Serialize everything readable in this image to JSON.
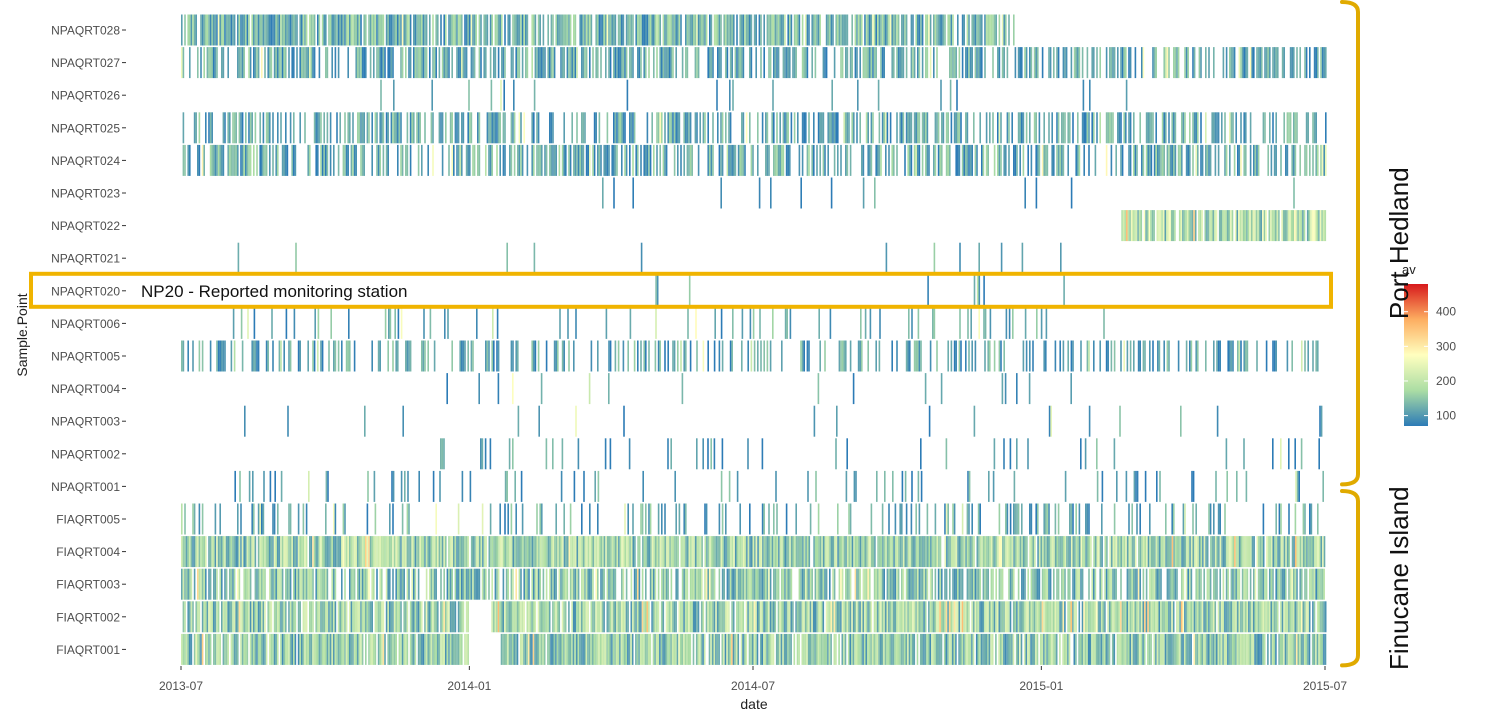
{
  "chart_data": {
    "type": "heatmap",
    "xlabel": "date",
    "ylabel": "Sample.Point",
    "x_ticks": [
      "2013-07",
      "2014-01",
      "2014-07",
      "2015-01",
      "2015-07"
    ],
    "xlim": [
      "2013-07-01",
      "2015-07-01"
    ],
    "rows": [
      "NPAQRT028",
      "NPAQRT027",
      "NPAQRT026",
      "NPAQRT025",
      "NPAQRT024",
      "NPAQRT023",
      "NPAQRT022",
      "NPAQRT021",
      "NPAQRT020",
      "NPAQRT006",
      "NPAQRT005",
      "NPAQRT004",
      "NPAQRT003",
      "NPAQRT002",
      "NPAQRT001",
      "FIAQRT005",
      "FIAQRT004",
      "FIAQRT003",
      "FIAQRT002",
      "FIAQRT001"
    ],
    "legend": {
      "title": "av",
      "ticks": [
        100,
        200,
        300,
        400
      ],
      "range": [
        70,
        480
      ],
      "palette": [
        "#2c7bb6",
        "#abdda4",
        "#ffffbf",
        "#fdae61",
        "#d7191c"
      ]
    },
    "coverage": [
      {
        "row": "NPAQRT028",
        "spans": [
          [
            "2013-07-01",
            "2014-12-14"
          ]
        ],
        "density": 0.82,
        "mean_av": 130
      },
      {
        "row": "NPAQRT027",
        "spans": [
          [
            "2013-07-01",
            "2015-07-01"
          ]
        ],
        "density": 0.62,
        "mean_av": 115
      },
      {
        "row": "NPAQRT026",
        "spans": [
          [
            "2013-11-01",
            "2015-03-01"
          ]
        ],
        "density": 0.05,
        "mean_av": 105
      },
      {
        "row": "NPAQRT025",
        "spans": [
          [
            "2013-07-01",
            "2015-07-01"
          ]
        ],
        "density": 0.5,
        "mean_av": 115
      },
      {
        "row": "NPAQRT024",
        "spans": [
          [
            "2013-07-01",
            "2015-07-01"
          ]
        ],
        "density": 0.55,
        "mean_av": 120
      },
      {
        "row": "NPAQRT023",
        "spans": [
          [
            "2014-01-05",
            "2015-06-20"
          ]
        ],
        "density": 0.03,
        "mean_av": 110
      },
      {
        "row": "NPAQRT022",
        "spans": [
          [
            "2015-02-20",
            "2015-07-01"
          ]
        ],
        "density": 0.92,
        "mean_av": 190
      },
      {
        "row": "NPAQRT021",
        "spans": [
          [
            "2013-08-01",
            "2015-02-10"
          ]
        ],
        "density": 0.02,
        "mean_av": 110
      },
      {
        "row": "NPAQRT020",
        "spans": [
          [
            "2013-12-20",
            "2015-02-10"
          ]
        ],
        "density": 0.02,
        "mean_av": 115
      },
      {
        "row": "NPAQRT006",
        "spans": [
          [
            "2013-08-01",
            "2015-02-10"
          ]
        ],
        "density": 0.12,
        "mean_av": 115
      },
      {
        "row": "NPAQRT005",
        "spans": [
          [
            "2013-07-01",
            "2015-07-01"
          ]
        ],
        "density": 0.35,
        "mean_av": 110
      },
      {
        "row": "NPAQRT004",
        "spans": [
          [
            "2013-12-01",
            "2015-02-01"
          ]
        ],
        "density": 0.03,
        "mean_av": 105
      },
      {
        "row": "NPAQRT003",
        "spans": [
          [
            "2013-08-01",
            "2015-06-30"
          ]
        ],
        "density": 0.02,
        "mean_av": 105
      },
      {
        "row": "NPAQRT002",
        "spans": [
          [
            "2013-12-01",
            "2015-07-01"
          ]
        ],
        "density": 0.08,
        "mean_av": 105
      },
      {
        "row": "NPAQRT001",
        "spans": [
          [
            "2013-08-01",
            "2015-07-01"
          ]
        ],
        "density": 0.1,
        "mean_av": 105
      },
      {
        "row": "FIAQRT005",
        "spans": [
          [
            "2013-07-01",
            "2015-07-01"
          ]
        ],
        "density": 0.22,
        "mean_av": 115
      },
      {
        "row": "FIAQRT004",
        "spans": [
          [
            "2013-07-01",
            "2013-12-31"
          ],
          [
            "2014-01-02",
            "2015-07-01"
          ]
        ],
        "density": 0.97,
        "mean_av": 170
      },
      {
        "row": "FIAQRT003",
        "spans": [
          [
            "2013-07-01",
            "2015-07-01"
          ]
        ],
        "density": 0.75,
        "mean_av": 150
      },
      {
        "row": "FIAQRT002",
        "spans": [
          [
            "2013-07-01",
            "2013-12-31"
          ],
          [
            "2014-01-15",
            "2015-07-01"
          ]
        ],
        "density": 0.92,
        "mean_av": 165
      },
      {
        "row": "FIAQRT001",
        "spans": [
          [
            "2013-07-01",
            "2013-12-31"
          ],
          [
            "2014-01-20",
            "2015-07-01"
          ]
        ],
        "density": 0.9,
        "mean_av": 155
      }
    ],
    "annotations": {
      "highlight": {
        "row": "NPAQRT020",
        "text": "NP20 - Reported monitoring station",
        "color": "#f0b400"
      },
      "groups": [
        {
          "label": "Port Hedland",
          "rows": [
            "NPAQRT028",
            "NPAQRT001"
          ],
          "color": "#e0aa00"
        },
        {
          "label": "Finucane Island",
          "rows": [
            "FIAQRT005",
            "FIAQRT001"
          ],
          "color": "#e0aa00"
        }
      ]
    }
  }
}
